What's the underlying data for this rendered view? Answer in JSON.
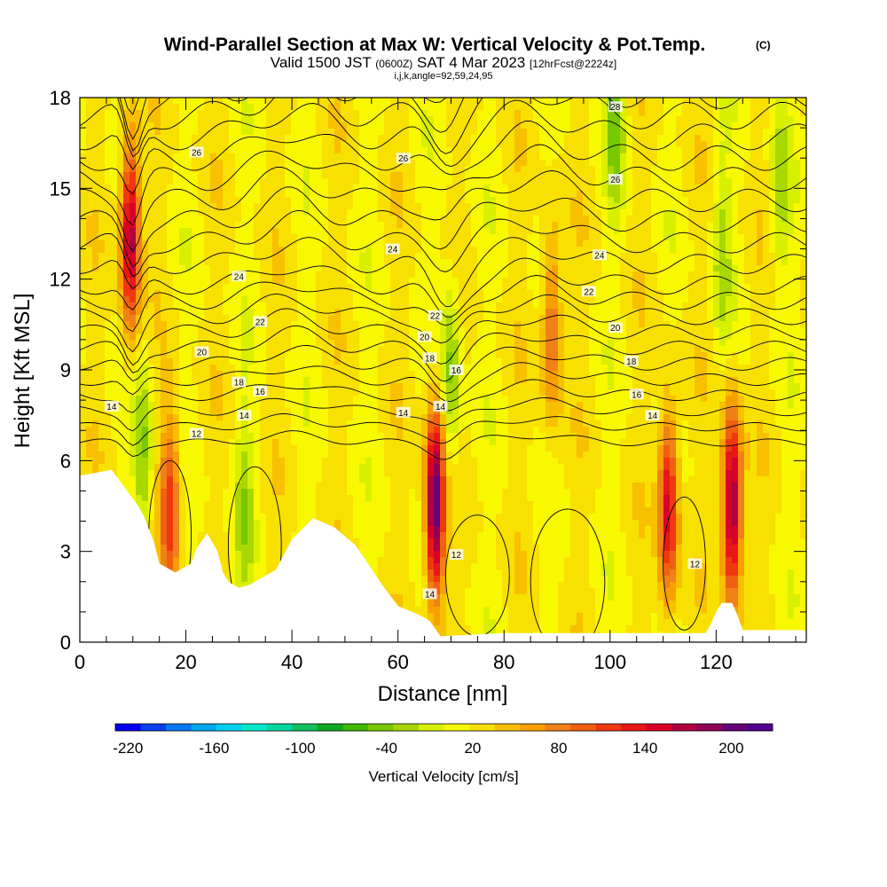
{
  "header": {
    "title": "Wind-Parallel Section at Max W: Vertical Velocity & Pot.Temp.",
    "title_mark": "(C)",
    "valid_prefix": "Valid 1500 JST",
    "valid_utc": "(0600Z)",
    "valid_date": "SAT 4 Mar 2023",
    "forecast": "[12hrFcst@2224z]",
    "indices": "i,j,k,angle=92,59,24,95"
  },
  "chart_data": {
    "type": "heatmap",
    "xlabel": "Distance [nm]",
    "ylabel": "Height [Kft MSL]",
    "xlim": [
      0,
      137
    ],
    "ylim": [
      0,
      18
    ],
    "x_ticks": [
      0,
      20,
      40,
      60,
      80,
      100,
      120
    ],
    "y_ticks": [
      0,
      3,
      6,
      9,
      12,
      15,
      18
    ],
    "colorbar": {
      "label": "Vertical Velocity [cm/s]",
      "range": [
        -220,
        220
      ],
      "step": 20,
      "tick_values": [
        -220,
        -160,
        -100,
        -40,
        20,
        80,
        140,
        200
      ],
      "colors": [
        "#0000f0",
        "#0a40f0",
        "#0a78f0",
        "#00a8f0",
        "#00d0f0",
        "#00e8c8",
        "#00d8a0",
        "#10c060",
        "#10a820",
        "#40b800",
        "#78c800",
        "#a8d800",
        "#d8f000",
        "#f8f800",
        "#f8e000",
        "#f8c000",
        "#f8a000",
        "#f08018",
        "#f06010",
        "#f03810",
        "#e81818",
        "#d80028",
        "#b00040",
        "#900058",
        "#680078",
        "#500090"
      ]
    },
    "terrain_profile": {
      "x": [
        0,
        6,
        11,
        12,
        14,
        15,
        18,
        21,
        22,
        24,
        26,
        27,
        28,
        30,
        32,
        37,
        40,
        44,
        48,
        52,
        57,
        60,
        64,
        66,
        68,
        80,
        100,
        118,
        119,
        120,
        121,
        123,
        124,
        125,
        137
      ],
      "height": [
        5.5,
        5.7,
        4.5,
        4.2,
        3.3,
        2.6,
        2.3,
        2.6,
        3.1,
        3.6,
        3.0,
        2.3,
        2.0,
        1.8,
        1.9,
        2.4,
        3.4,
        4.1,
        3.8,
        3.2,
        1.9,
        1.2,
        0.9,
        0.7,
        0.2,
        0.3,
        0.3,
        0.3,
        0.6,
        1.0,
        1.3,
        1.3,
        0.9,
        0.4,
        0.4
      ]
    },
    "updraft_cores": [
      {
        "x": 9.5,
        "y": 13.5,
        "w": 160
      },
      {
        "x": 17,
        "y": 4.5,
        "w": 100
      },
      {
        "x": 67,
        "y": 4.5,
        "w": 200
      },
      {
        "x": 89,
        "y": 10.5,
        "w": 80
      },
      {
        "x": 111,
        "y": 4.5,
        "w": 140
      },
      {
        "x": 123,
        "y": 4.5,
        "w": 180
      }
    ],
    "downdraft_cores": [
      {
        "x": 12,
        "y": 6.0,
        "w": -60
      },
      {
        "x": 31,
        "y": 4.5,
        "w": -40
      },
      {
        "x": 70,
        "y": 9.0,
        "w": -60
      },
      {
        "x": 101,
        "y": 17.5,
        "w": -60
      },
      {
        "x": 121,
        "y": 13.0,
        "w": -40
      },
      {
        "x": 132,
        "y": 15.0,
        "w": -40
      }
    ],
    "pot_temp_labels": [
      {
        "x": 6,
        "y": 7.8,
        "text": "14"
      },
      {
        "x": 22,
        "y": 6.9,
        "text": "12"
      },
      {
        "x": 31,
        "y": 7.5,
        "text": "14"
      },
      {
        "x": 34,
        "y": 8.3,
        "text": "16"
      },
      {
        "x": 30,
        "y": 8.6,
        "text": "18"
      },
      {
        "x": 23,
        "y": 9.6,
        "text": "20"
      },
      {
        "x": 34,
        "y": 10.6,
        "text": "22"
      },
      {
        "x": 30,
        "y": 12.1,
        "text": "24"
      },
      {
        "x": 22,
        "y": 16.2,
        "text": "26"
      },
      {
        "x": 61,
        "y": 7.6,
        "text": "14"
      },
      {
        "x": 68,
        "y": 7.8,
        "text": "14"
      },
      {
        "x": 71,
        "y": 9.0,
        "text": "16"
      },
      {
        "x": 66,
        "y": 9.4,
        "text": "18"
      },
      {
        "x": 65,
        "y": 10.1,
        "text": "20"
      },
      {
        "x": 67,
        "y": 10.8,
        "text": "22"
      },
      {
        "x": 59,
        "y": 13.0,
        "text": "24"
      },
      {
        "x": 61,
        "y": 16.0,
        "text": "26"
      },
      {
        "x": 71,
        "y": 2.9,
        "text": "12"
      },
      {
        "x": 66,
        "y": 1.6,
        "text": "14"
      },
      {
        "x": 101,
        "y": 17.7,
        "text": "28"
      },
      {
        "x": 101,
        "y": 15.3,
        "text": "26"
      },
      {
        "x": 98,
        "y": 12.8,
        "text": "24"
      },
      {
        "x": 96,
        "y": 11.6,
        "text": "22"
      },
      {
        "x": 101,
        "y": 10.4,
        "text": "20"
      },
      {
        "x": 104,
        "y": 9.3,
        "text": "18"
      },
      {
        "x": 105,
        "y": 8.2,
        "text": "16"
      },
      {
        "x": 108,
        "y": 7.5,
        "text": "14"
      },
      {
        "x": 116,
        "y": 2.6,
        "text": "12"
      }
    ]
  }
}
